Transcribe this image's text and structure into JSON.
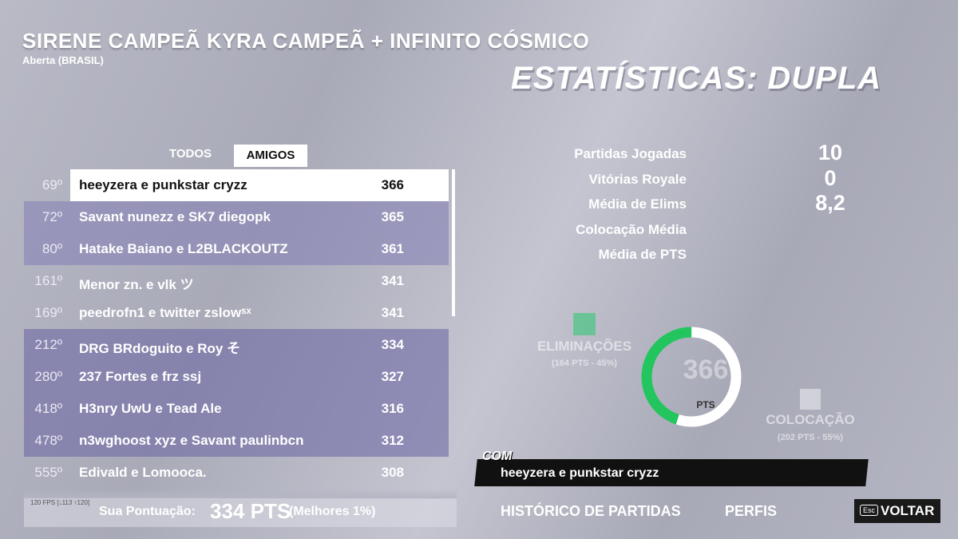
{
  "header": {
    "title": "SIRENE CAMPEÃ KYRA CAMPEÃ + INFINITO CÓSMICO",
    "subtitle": "Aberta (BRASIL)",
    "heading": "ESTATÍSTICAS: DUPLA"
  },
  "tabs": [
    "TODOS",
    "AMIGOS"
  ],
  "leaderboard": [
    {
      "rank": "69º",
      "name": "heeyzera e punkstar cryzz",
      "points": "366"
    },
    {
      "rank": "72º",
      "name": "Savant nunezz e SK7 diegopk",
      "points": "365"
    },
    {
      "rank": "80º",
      "name": "Hatake Baiano e L2BLACKOUTZ",
      "points": "361"
    },
    {
      "rank": "161º",
      "name": "Menor zn. e vlk ツ",
      "points": "341"
    },
    {
      "rank": "169º",
      "name": "peedrofn1 e twitter zslowˢˣ",
      "points": "341"
    },
    {
      "rank": "212º",
      "name": "DRG BRdoguito e Roy そ",
      "points": "334"
    },
    {
      "rank": "280º",
      "name": "237 Fortes e frz ssj",
      "points": "327"
    },
    {
      "rank": "418º",
      "name": "H3nry UwU e Tead Ale",
      "points": "316"
    },
    {
      "rank": "478º",
      "name": "n3wghoost xyz e Savant paulinbcn",
      "points": "312"
    },
    {
      "rank": "555º",
      "name": "Edivald e Lomooca.",
      "points": "308"
    }
  ],
  "stats": [
    {
      "label": "Partidas Jogadas",
      "value": "10"
    },
    {
      "label": "Vitórias Royale",
      "value": "0"
    },
    {
      "label": "Média de Elims",
      "value": "8,2"
    },
    {
      "label": "Colocação Média"
    },
    {
      "label": "Média de PTS"
    }
  ],
  "breakdown": {
    "total": "366",
    "unit": "PTS",
    "eliminations": {
      "label": "ELIMINAÇÕES",
      "detail": "(164 PTS - 45%)",
      "percent": 45
    },
    "placement": {
      "label": "COLOCAÇÃO",
      "detail": "(202 PTS - 55%)",
      "percent": 55
    }
  },
  "team": {
    "label": "COM",
    "name": "heeyzera e punkstar cryzz"
  },
  "footer": {
    "fps": "120 FPS [↓113 ↑120]",
    "score_label": "Sua Pontuação:",
    "score": "334 PTS",
    "rank_note": "(Melhores 1%)"
  },
  "buttons": {
    "history": "HISTÓRICO DE PARTIDAS",
    "profiles": "PERFIS",
    "key": "Esc",
    "back": "VOLTAR"
  }
}
